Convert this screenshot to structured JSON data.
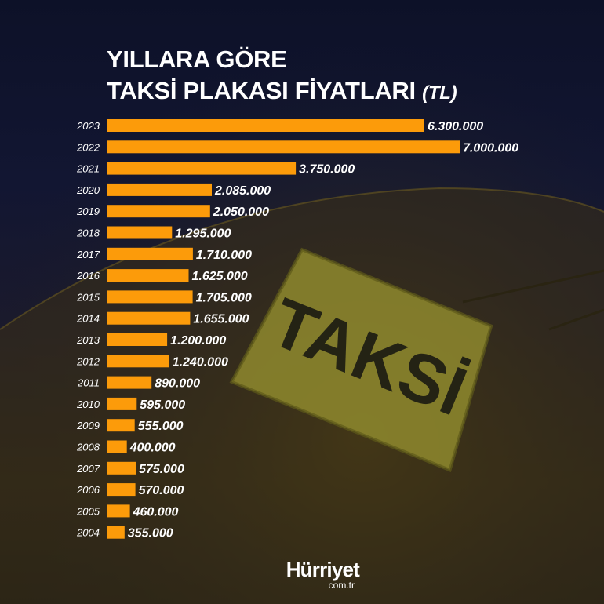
{
  "title": {
    "line1": "YILLARA GÖRE",
    "line2": "TAKSİ PLAKASI FİYATLARI",
    "unit": "(TL)"
  },
  "background": {
    "sign_text": "TAKSİ"
  },
  "logo": {
    "brand": "Hürriyet",
    "domain": "com.tr"
  },
  "colors": {
    "bar": "#fc9b0a",
    "label_text": "#ffffff",
    "background": "#121632"
  },
  "chart_data": {
    "type": "bar",
    "orientation": "horizontal",
    "title": "YILLARA GÖRE TAKSİ PLAKASI FİYATLARI (TL)",
    "categories": [
      "2023",
      "2022",
      "2021",
      "2020",
      "2019",
      "2018",
      "2017",
      "2016",
      "2015",
      "2014",
      "2013",
      "2012",
      "2011",
      "2010",
      "2009",
      "2008",
      "2007",
      "2006",
      "2005",
      "2004"
    ],
    "values": [
      6300000,
      7000000,
      3750000,
      2085000,
      2050000,
      1295000,
      1710000,
      1625000,
      1705000,
      1655000,
      1200000,
      1240000,
      890000,
      595000,
      555000,
      400000,
      575000,
      570000,
      460000,
      355000
    ],
    "value_labels": [
      "6.300.000",
      "7.000.000",
      "3.750.000",
      "2.085.000",
      "2.050.000",
      "1.295.000",
      "1.710.000",
      "1.625.000",
      "1.705.000",
      "1.655.000",
      "1.200.000",
      "1.240.000",
      "890.000",
      "595.000",
      "555.000",
      "400.000",
      "575.000",
      "570.000",
      "460.000",
      "355.000"
    ],
    "xlim": [
      0,
      7000000
    ],
    "grid": false,
    "legend": "none"
  }
}
